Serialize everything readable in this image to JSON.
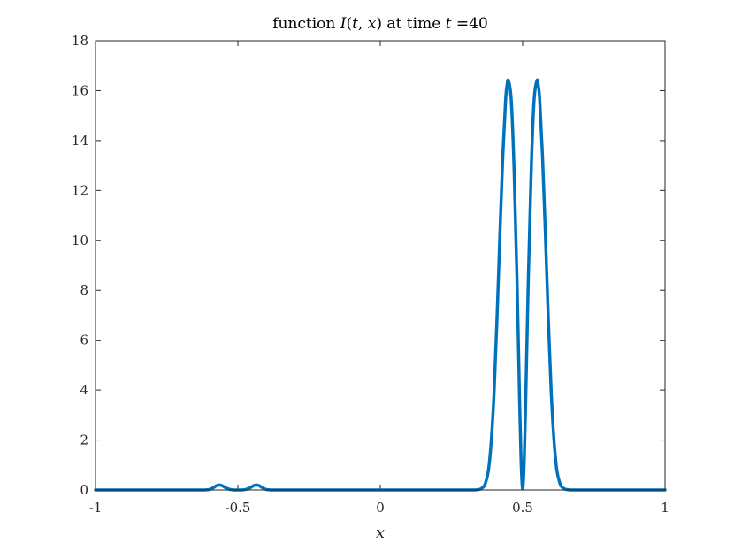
{
  "chart_data": {
    "type": "line",
    "title": {
      "prefix": "function ",
      "func": "I",
      "args_open": "(",
      "arg_t": "t",
      "comma": ", ",
      "arg_x": "x",
      "args_close": ")",
      "middle": " at time ",
      "time_var": "t",
      "time_value": " =40"
    },
    "xlabel": "x",
    "ylabel": "",
    "xlim": [
      -1,
      1
    ],
    "ylim": [
      0,
      18
    ],
    "x_ticks": [
      {
        "value": -1,
        "label": "-1"
      },
      {
        "value": -0.5,
        "label": "-0.5"
      },
      {
        "value": 0,
        "label": "0"
      },
      {
        "value": 0.5,
        "label": "0.5"
      },
      {
        "value": 1,
        "label": "1"
      }
    ],
    "y_ticks": [
      {
        "value": 0,
        "label": "0"
      },
      {
        "value": 2,
        "label": "2"
      },
      {
        "value": 4,
        "label": "4"
      },
      {
        "value": 6,
        "label": "6"
      },
      {
        "value": 8,
        "label": "8"
      },
      {
        "value": 10,
        "label": "10"
      },
      {
        "value": 12,
        "label": "12"
      },
      {
        "value": 14,
        "label": "14"
      },
      {
        "value": 16,
        "label": "16"
      },
      {
        "value": 18,
        "label": "18"
      }
    ],
    "grid": false,
    "line_color": "#0072BD",
    "series": [
      {
        "x": [
          -1.0,
          -0.7,
          -0.65,
          -0.62,
          -0.6,
          -0.585,
          -0.575,
          -0.565,
          -0.555,
          -0.545,
          -0.53,
          -0.515,
          -0.5,
          -0.485,
          -0.47,
          -0.455,
          -0.445,
          -0.435,
          -0.425,
          -0.415,
          -0.4,
          -0.38,
          -0.35,
          -0.2,
          0.0,
          0.2,
          0.33,
          0.36,
          0.37,
          0.38,
          0.39,
          0.4,
          0.41,
          0.42,
          0.43,
          0.44,
          0.445,
          0.45,
          0.46,
          0.47,
          0.48,
          0.49,
          0.495,
          0.5,
          0.505,
          0.51,
          0.52,
          0.53,
          0.54,
          0.55,
          0.555,
          0.56,
          0.57,
          0.58,
          0.59,
          0.6,
          0.61,
          0.62,
          0.63,
          0.64,
          0.67,
          0.8,
          1.0
        ],
        "y": [
          0,
          0,
          0,
          0,
          0.02,
          0.1,
          0.17,
          0.2,
          0.17,
          0.1,
          0.03,
          0.0,
          0.0,
          0.0,
          0.03,
          0.1,
          0.17,
          0.2,
          0.17,
          0.1,
          0.02,
          0,
          0,
          0,
          0,
          0,
          0,
          0.1,
          0.3,
          0.8,
          2.0,
          4.0,
          6.9,
          10.2,
          13.3,
          15.6,
          16.2,
          16.4,
          15.6,
          12.8,
          8.5,
          3.2,
          1.0,
          0.05,
          1.0,
          3.2,
          8.5,
          12.8,
          15.6,
          16.4,
          16.2,
          15.6,
          13.3,
          10.2,
          6.9,
          4.0,
          2.0,
          0.8,
          0.3,
          0.1,
          0,
          0,
          0
        ]
      }
    ]
  }
}
